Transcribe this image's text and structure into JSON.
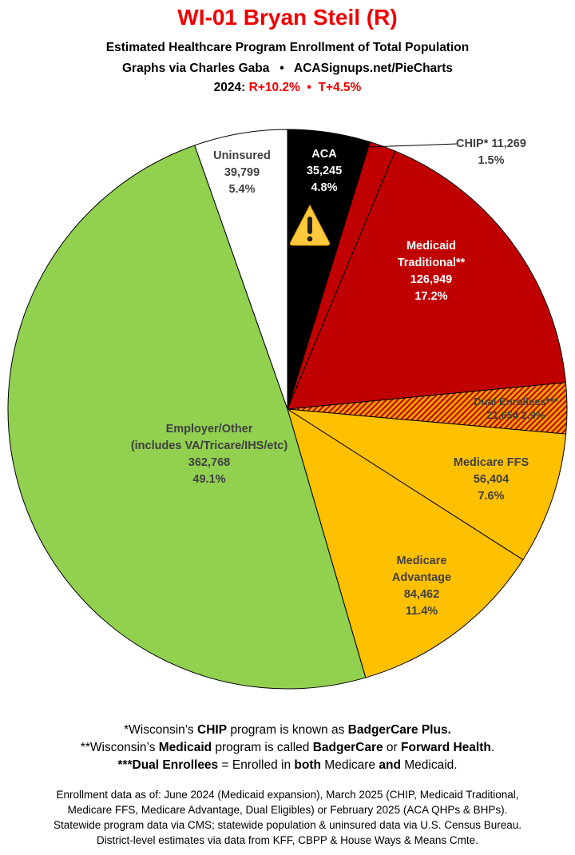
{
  "header": {
    "title": "WI-01 Bryan Steil (R)",
    "subtitle": "Estimated Healthcare Program Enrollment of Total Population",
    "credit": "Graphs via Charles Gaba   •   ACASignups.net/PieCharts",
    "year_label": "2024:",
    "margins": "R+10.2%  •  T+4.5%"
  },
  "chart_data": {
    "type": "pie",
    "title": "WI-01 Bryan Steil (R)",
    "start": "12 o'clock, clockwise",
    "slices": [
      {
        "label": "ACA",
        "value": 35245,
        "pct": "4.8%",
        "value_text": "35,245",
        "color": "#000000"
      },
      {
        "label": "CHIP*",
        "value": 11269,
        "pct": "1.5%",
        "value_text": "11,269",
        "color": "#c00000"
      },
      {
        "label": "Medicaid Traditional**",
        "label1": "Medicaid",
        "label2": "Traditional**",
        "value": 126949,
        "pct": "17.2%",
        "value_text": "126,949",
        "color": "#c00000"
      },
      {
        "label": "Dual Enrollees***",
        "value": 21654,
        "pct": "2.9%",
        "value_text": "21,654",
        "color": "#f0a000",
        "pattern": "hatched"
      },
      {
        "label": "Medicare FFS",
        "value": 56404,
        "pct": "7.6%",
        "value_text": "56,404",
        "color": "#ffc000"
      },
      {
        "label": "Medicare Advantage",
        "label1": "Medicare",
        "label2": "Advantage",
        "value": 84462,
        "pct": "11.4%",
        "value_text": "84,462",
        "color": "#ffc000"
      },
      {
        "label": "Employer/Other (includes VA/Tricare/IHS/etc)",
        "label1": "Employer/Other",
        "label2": "(includes VA/Tricare/IHS/etc)",
        "value": 362768,
        "pct": "49.1%",
        "value_text": "362,768",
        "color": "#92d050"
      },
      {
        "label": "Uninsured",
        "value": 39799,
        "pct": "5.4%",
        "value_text": "39,799",
        "color": "#ffffff"
      }
    ]
  },
  "icons": {
    "aca_warning": "warning-triangle-icon"
  },
  "notes": {
    "n1": [
      "*Wisconsin’s ",
      "CHIP",
      " program is known as ",
      "BadgerCare Plus."
    ],
    "n2": [
      "**Wisconsin’s ",
      "Medicaid",
      " program is called ",
      "BadgerCare",
      " or ",
      "Forward Health",
      "."
    ],
    "n3": [
      "***Dual Enrollees",
      " = Enrolled in ",
      "both",
      " Medicare ",
      "and",
      " Medicaid."
    ]
  },
  "sources": [
    "Enrollment data as of: June 2024 (Medicaid expansion), March 2025 (CHIP, Medicaid Traditional,",
    "Medicare FFS, Medicare Advantage, Dual Eligibles) or February 2025 (ACA QHPs & BHPs).",
    "Statewide program data via CMS; statewide population & uninsured data via U.S. Census Bureau.",
    "District-level estimates via data from KFF, CBPP & House Ways & Means Cmte."
  ]
}
